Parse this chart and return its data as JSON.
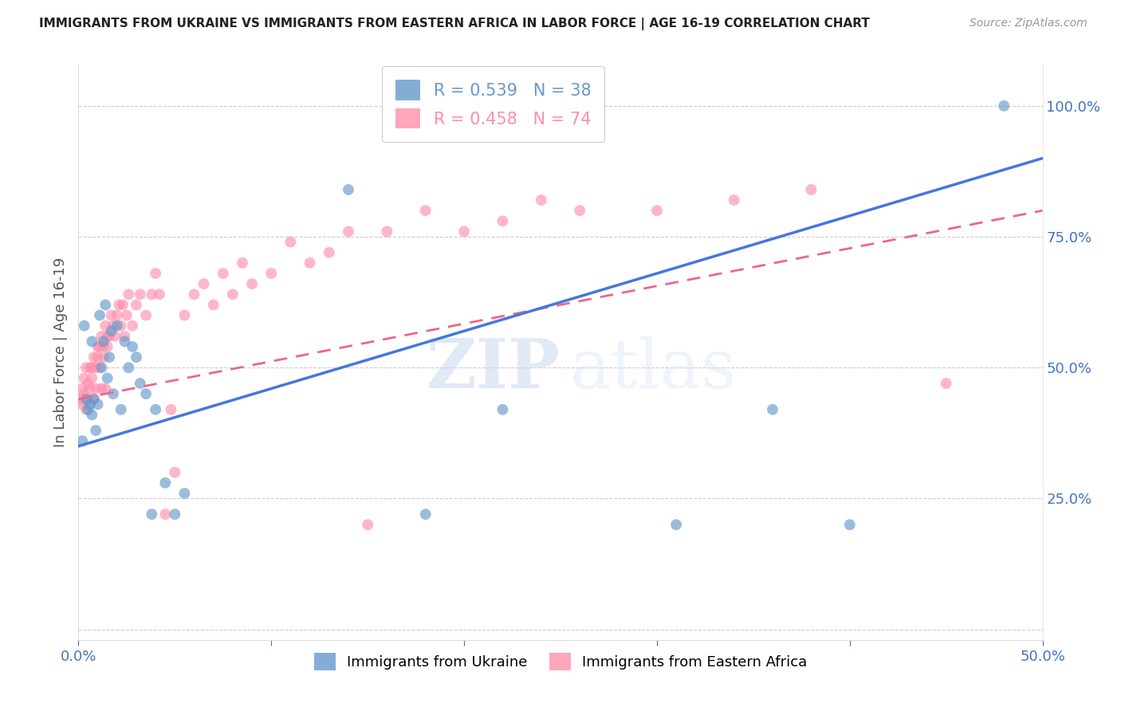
{
  "title": "IMMIGRANTS FROM UKRAINE VS IMMIGRANTS FROM EASTERN AFRICA IN LABOR FORCE | AGE 16-19 CORRELATION CHART",
  "source": "Source: ZipAtlas.com",
  "ylabel_label": "In Labor Force | Age 16-19",
  "xlim": [
    0.0,
    0.5
  ],
  "ylim": [
    -0.02,
    1.08
  ],
  "ukraine_color": "#6699CC",
  "eastern_africa_color": "#FF8FAB",
  "ukraine_R": 0.539,
  "ukraine_N": 38,
  "eastern_africa_R": 0.458,
  "eastern_africa_N": 74,
  "ukraine_line_x": [
    0.0,
    0.5
  ],
  "ukraine_line_y": [
    0.35,
    0.9
  ],
  "eastern_africa_line_x": [
    0.0,
    0.5
  ],
  "eastern_africa_line_y": [
    0.44,
    0.8
  ],
  "ukraine_scatter_x": [
    0.002,
    0.003,
    0.004,
    0.005,
    0.006,
    0.007,
    0.007,
    0.008,
    0.009,
    0.01,
    0.011,
    0.012,
    0.013,
    0.014,
    0.015,
    0.016,
    0.017,
    0.018,
    0.02,
    0.022,
    0.024,
    0.026,
    0.028,
    0.03,
    0.032,
    0.035,
    0.038,
    0.04,
    0.045,
    0.05,
    0.055,
    0.14,
    0.18,
    0.22,
    0.31,
    0.36,
    0.4,
    0.48
  ],
  "ukraine_scatter_y": [
    0.36,
    0.58,
    0.44,
    0.42,
    0.43,
    0.55,
    0.41,
    0.44,
    0.38,
    0.43,
    0.6,
    0.5,
    0.55,
    0.62,
    0.48,
    0.52,
    0.57,
    0.45,
    0.58,
    0.42,
    0.55,
    0.5,
    0.54,
    0.52,
    0.47,
    0.45,
    0.22,
    0.42,
    0.28,
    0.22,
    0.26,
    0.84,
    0.22,
    0.42,
    0.2,
    0.42,
    0.2,
    1.0
  ],
  "eastern_africa_scatter_x": [
    0.001,
    0.002,
    0.002,
    0.003,
    0.003,
    0.004,
    0.004,
    0.005,
    0.005,
    0.006,
    0.006,
    0.007,
    0.007,
    0.008,
    0.008,
    0.009,
    0.009,
    0.01,
    0.01,
    0.011,
    0.011,
    0.012,
    0.012,
    0.013,
    0.013,
    0.014,
    0.014,
    0.015,
    0.015,
    0.016,
    0.017,
    0.018,
    0.019,
    0.02,
    0.021,
    0.022,
    0.023,
    0.024,
    0.025,
    0.026,
    0.028,
    0.03,
    0.032,
    0.035,
    0.038,
    0.04,
    0.042,
    0.045,
    0.048,
    0.05,
    0.055,
    0.06,
    0.065,
    0.07,
    0.075,
    0.08,
    0.085,
    0.09,
    0.1,
    0.11,
    0.12,
    0.13,
    0.14,
    0.15,
    0.16,
    0.18,
    0.2,
    0.22,
    0.24,
    0.26,
    0.3,
    0.34,
    0.38,
    0.45
  ],
  "eastern_africa_scatter_y": [
    0.44,
    0.46,
    0.43,
    0.48,
    0.45,
    0.5,
    0.42,
    0.47,
    0.44,
    0.5,
    0.46,
    0.5,
    0.48,
    0.44,
    0.52,
    0.5,
    0.46,
    0.52,
    0.54,
    0.5,
    0.54,
    0.46,
    0.56,
    0.52,
    0.54,
    0.58,
    0.46,
    0.56,
    0.54,
    0.56,
    0.6,
    0.58,
    0.56,
    0.6,
    0.62,
    0.58,
    0.62,
    0.56,
    0.6,
    0.64,
    0.58,
    0.62,
    0.64,
    0.6,
    0.64,
    0.68,
    0.64,
    0.22,
    0.42,
    0.3,
    0.6,
    0.64,
    0.66,
    0.62,
    0.68,
    0.64,
    0.7,
    0.66,
    0.68,
    0.74,
    0.7,
    0.72,
    0.76,
    0.2,
    0.76,
    0.8,
    0.76,
    0.78,
    0.82,
    0.8,
    0.8,
    0.82,
    0.84,
    0.47
  ],
  "watermark_zip": "ZIP",
  "watermark_atlas": "atlas",
  "grid_color": "#cccccc",
  "background_color": "#ffffff",
  "title_color": "#222222",
  "axis_label_color": "#555555",
  "tick_color": "#4472C4"
}
